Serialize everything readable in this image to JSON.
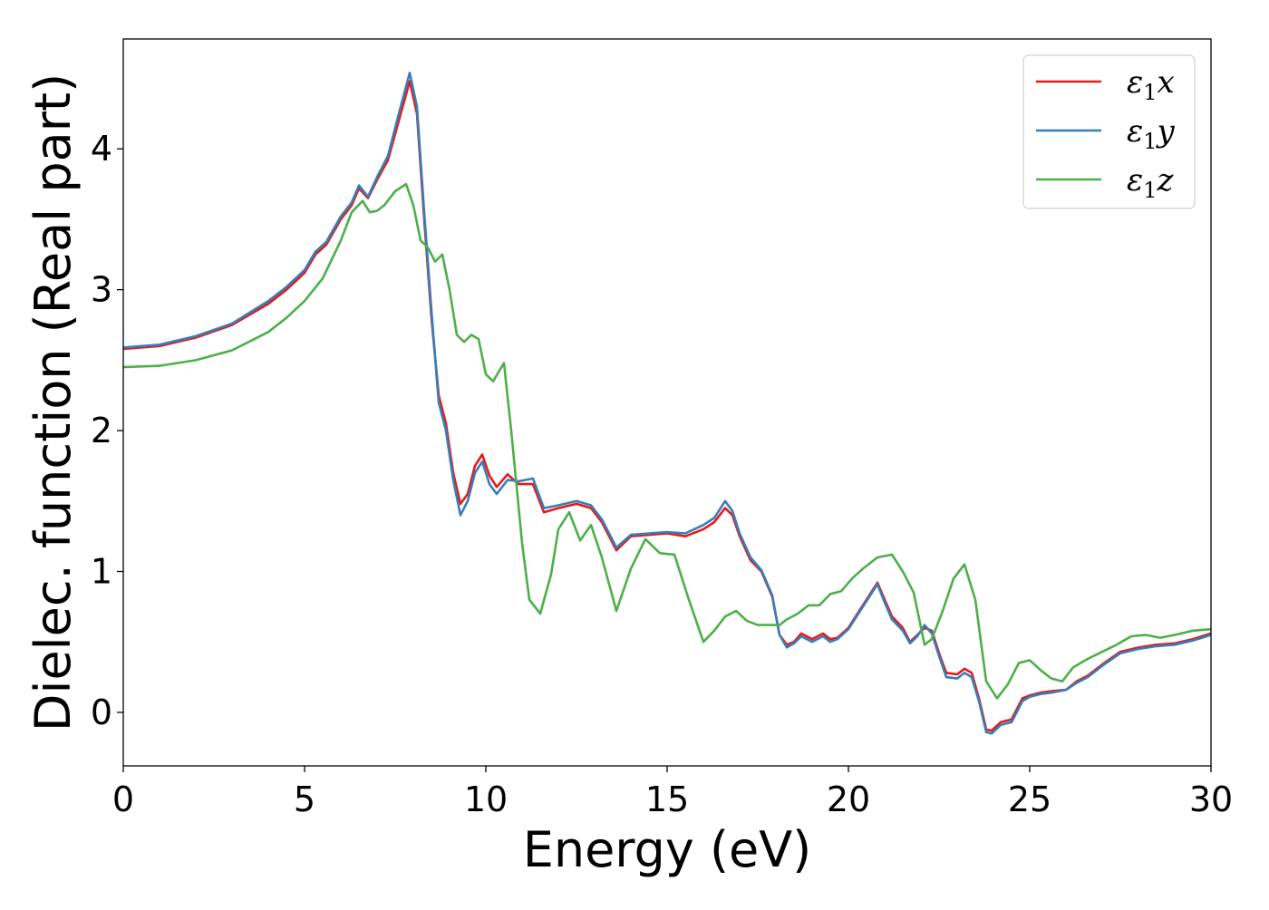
{
  "chart_data": {
    "type": "line",
    "title": "",
    "xlabel": "Energy (eV)",
    "ylabel": "Dielec. function (Real part)",
    "xlim": [
      0,
      30
    ],
    "ylim": [
      -0.38,
      4.78
    ],
    "xticks": [
      0,
      5,
      10,
      15,
      20,
      25,
      30
    ],
    "yticks": [
      0,
      1,
      2,
      3,
      4
    ],
    "grid": false,
    "legend_position": "top-right",
    "legend": [
      {
        "label": "ε",
        "sub": "1",
        "axis": "x"
      },
      {
        "label": "ε",
        "sub": "1",
        "axis": "y"
      },
      {
        "label": "ε",
        "sub": "1",
        "axis": "z"
      }
    ],
    "series": [
      {
        "name": "ε1x",
        "color": "#e41a1c",
        "x": [
          0,
          1,
          2,
          3,
          4,
          4.5,
          5,
          5.3,
          5.6,
          6,
          6.3,
          6.5,
          6.75,
          7,
          7.3,
          7.6,
          7.9,
          8.1,
          8.3,
          8.5,
          8.7,
          8.9,
          9.1,
          9.3,
          9.5,
          9.7,
          9.9,
          10.1,
          10.3,
          10.6,
          10.9,
          11.3,
          11.6,
          12,
          12.5,
          12.9,
          13.2,
          13.6,
          14,
          14.5,
          15,
          15.5,
          16,
          16.3,
          16.6,
          16.8,
          17,
          17.3,
          17.6,
          17.9,
          18.1,
          18.3,
          18.5,
          18.7,
          19,
          19.3,
          19.5,
          19.7,
          20,
          20.3,
          20.5,
          20.8,
          21,
          21.2,
          21.5,
          21.7,
          21.9,
          22.1,
          22.3,
          22.5,
          22.7,
          23,
          23.2,
          23.4,
          23.6,
          23.8,
          23.95,
          24.2,
          24.5,
          24.8,
          25,
          25.3,
          25.6,
          26,
          26.3,
          26.6,
          27,
          27.5,
          28,
          28.5,
          29,
          29.5,
          30
        ],
        "y": [
          2.58,
          2.6,
          2.66,
          2.75,
          2.9,
          3.0,
          3.12,
          3.25,
          3.32,
          3.5,
          3.6,
          3.72,
          3.65,
          3.78,
          3.92,
          4.2,
          4.48,
          4.25,
          3.5,
          2.8,
          2.25,
          2.05,
          1.7,
          1.48,
          1.55,
          1.75,
          1.83,
          1.68,
          1.6,
          1.69,
          1.62,
          1.62,
          1.42,
          1.45,
          1.48,
          1.45,
          1.35,
          1.15,
          1.25,
          1.26,
          1.27,
          1.25,
          1.3,
          1.35,
          1.45,
          1.4,
          1.25,
          1.08,
          1.0,
          0.82,
          0.55,
          0.48,
          0.5,
          0.56,
          0.52,
          0.56,
          0.52,
          0.53,
          0.6,
          0.72,
          0.8,
          0.92,
          0.8,
          0.68,
          0.6,
          0.5,
          0.55,
          0.6,
          0.58,
          0.42,
          0.28,
          0.27,
          0.31,
          0.28,
          0.1,
          -0.12,
          -0.13,
          -0.07,
          -0.05,
          0.1,
          0.12,
          0.14,
          0.15,
          0.16,
          0.22,
          0.26,
          0.34,
          0.43,
          0.46,
          0.48,
          0.49,
          0.52,
          0.56
        ]
      },
      {
        "name": "ε1y",
        "color": "#377eb8",
        "x": [
          0,
          1,
          2,
          3,
          4,
          4.5,
          5,
          5.3,
          5.6,
          6,
          6.3,
          6.5,
          6.75,
          7,
          7.3,
          7.6,
          7.9,
          8.1,
          8.3,
          8.5,
          8.7,
          8.9,
          9.1,
          9.3,
          9.5,
          9.7,
          9.9,
          10.1,
          10.3,
          10.6,
          10.9,
          11.3,
          11.6,
          12,
          12.5,
          12.9,
          13.2,
          13.6,
          14,
          14.5,
          15,
          15.5,
          16,
          16.3,
          16.6,
          16.8,
          17,
          17.3,
          17.6,
          17.9,
          18.1,
          18.3,
          18.5,
          18.7,
          19,
          19.3,
          19.5,
          19.7,
          20,
          20.3,
          20.5,
          20.8,
          21,
          21.2,
          21.5,
          21.7,
          21.9,
          22.1,
          22.3,
          22.5,
          22.7,
          23,
          23.2,
          23.4,
          23.6,
          23.8,
          23.95,
          24.2,
          24.5,
          24.8,
          25,
          25.3,
          25.6,
          26,
          26.3,
          26.6,
          27,
          27.5,
          28,
          28.5,
          29,
          29.5,
          30
        ],
        "y": [
          2.59,
          2.61,
          2.67,
          2.76,
          2.92,
          3.02,
          3.14,
          3.27,
          3.34,
          3.52,
          3.62,
          3.74,
          3.66,
          3.8,
          3.95,
          4.25,
          4.54,
          4.3,
          3.55,
          2.85,
          2.2,
          2.0,
          1.65,
          1.4,
          1.5,
          1.7,
          1.78,
          1.62,
          1.55,
          1.65,
          1.64,
          1.66,
          1.45,
          1.47,
          1.5,
          1.47,
          1.37,
          1.17,
          1.26,
          1.27,
          1.28,
          1.27,
          1.33,
          1.38,
          1.5,
          1.43,
          1.27,
          1.1,
          1.01,
          0.83,
          0.55,
          0.46,
          0.49,
          0.54,
          0.5,
          0.54,
          0.5,
          0.52,
          0.59,
          0.71,
          0.79,
          0.91,
          0.78,
          0.66,
          0.58,
          0.49,
          0.54,
          0.62,
          0.56,
          0.4,
          0.25,
          0.24,
          0.28,
          0.25,
          0.08,
          -0.14,
          -0.15,
          -0.09,
          -0.07,
          0.08,
          0.11,
          0.13,
          0.14,
          0.16,
          0.21,
          0.25,
          0.33,
          0.42,
          0.45,
          0.47,
          0.48,
          0.51,
          0.55
        ]
      },
      {
        "name": "ε1z",
        "color": "#4daf4a",
        "x": [
          0,
          1,
          2,
          3,
          4,
          4.5,
          5,
          5.5,
          6,
          6.3,
          6.6,
          6.8,
          7,
          7.2,
          7.5,
          7.8,
          8,
          8.2,
          8.4,
          8.6,
          8.8,
          9,
          9.2,
          9.4,
          9.6,
          9.8,
          10,
          10.2,
          10.5,
          10.7,
          11,
          11.2,
          11.5,
          11.8,
          12,
          12.3,
          12.6,
          12.9,
          13.2,
          13.6,
          14,
          14.4,
          14.8,
          15.2,
          15.6,
          16,
          16.3,
          16.6,
          16.9,
          17.2,
          17.5,
          17.8,
          18.1,
          18.3,
          18.6,
          18.9,
          19.2,
          19.5,
          19.8,
          20.1,
          20.4,
          20.8,
          21.2,
          21.5,
          21.8,
          22.1,
          22.3,
          22.6,
          22.9,
          23.2,
          23.5,
          23.8,
          24.1,
          24.4,
          24.7,
          25,
          25.3,
          25.6,
          25.9,
          26.2,
          26.6,
          27,
          27.4,
          27.8,
          28.2,
          28.6,
          29,
          29.5,
          30
        ],
        "y": [
          2.45,
          2.46,
          2.5,
          2.57,
          2.7,
          2.8,
          2.92,
          3.08,
          3.35,
          3.55,
          3.63,
          3.55,
          3.56,
          3.6,
          3.7,
          3.75,
          3.6,
          3.35,
          3.3,
          3.2,
          3.25,
          3.0,
          2.68,
          2.63,
          2.68,
          2.65,
          2.4,
          2.35,
          2.48,
          2.0,
          1.2,
          0.8,
          0.7,
          0.98,
          1.3,
          1.42,
          1.22,
          1.33,
          1.1,
          0.72,
          1.02,
          1.23,
          1.13,
          1.12,
          0.8,
          0.5,
          0.58,
          0.68,
          0.72,
          0.65,
          0.62,
          0.62,
          0.62,
          0.66,
          0.7,
          0.76,
          0.76,
          0.84,
          0.86,
          0.95,
          1.02,
          1.1,
          1.12,
          1.0,
          0.85,
          0.48,
          0.52,
          0.72,
          0.95,
          1.05,
          0.8,
          0.22,
          0.1,
          0.2,
          0.35,
          0.37,
          0.3,
          0.24,
          0.22,
          0.32,
          0.38,
          0.43,
          0.48,
          0.54,
          0.55,
          0.53,
          0.55,
          0.58,
          0.59
        ]
      }
    ]
  }
}
